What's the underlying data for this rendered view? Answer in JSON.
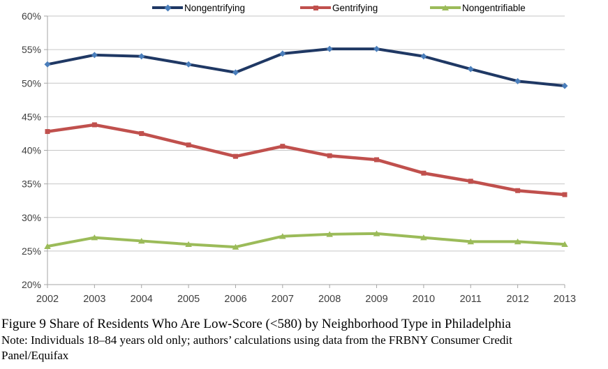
{
  "chart_data": {
    "type": "line",
    "title": "",
    "xlabel": "",
    "ylabel": "",
    "x": [
      "2002",
      "2003",
      "2004",
      "2005",
      "2006",
      "2007",
      "2008",
      "2009",
      "2010",
      "2011",
      "2012",
      "2013"
    ],
    "ylim": [
      20,
      60
    ],
    "ytick_step": 5,
    "ytick_labels": [
      "60%",
      "55%",
      "50%",
      "45%",
      "40%",
      "35%",
      "30%",
      "25%",
      "20%"
    ],
    "grid": true,
    "legend_position": "top",
    "series": [
      {
        "name": "Nongentrifying",
        "color": "#1F3864",
        "marker": "diamond",
        "marker_color": "#4A7EBB",
        "values": [
          52.8,
          54.2,
          54.0,
          52.8,
          51.6,
          54.4,
          55.1,
          55.1,
          54.0,
          52.1,
          50.3,
          49.6
        ]
      },
      {
        "name": "Gentrifying",
        "color": "#C0504D",
        "marker": "square",
        "marker_color": "#C0504D",
        "values": [
          42.8,
          43.8,
          42.5,
          40.8,
          39.1,
          40.6,
          39.2,
          38.6,
          36.6,
          35.4,
          34.0,
          33.4
        ]
      },
      {
        "name": "Nongentrifiable",
        "color": "#9BBB59",
        "marker": "triangle",
        "marker_color": "#9BBB59",
        "values": [
          25.7,
          27.0,
          26.5,
          26.0,
          25.6,
          27.2,
          27.5,
          27.6,
          27.0,
          26.4,
          26.4,
          26.0
        ]
      }
    ],
    "style": {
      "gridline_color": "#C6C6C6",
      "axis_color": "#A6A6A6",
      "tick_label_color": "#3F3F3F"
    }
  },
  "caption": {
    "figure": "Figure 9 Share of Residents Who Are Low-Score (<580) by Neighborhood Type in Philadelphia",
    "note_line1": "Note: Individuals 18–84 years old only; authors’ calculations using data from the FRBNY Consumer Credit",
    "note_line2": "Panel/Equifax"
  }
}
